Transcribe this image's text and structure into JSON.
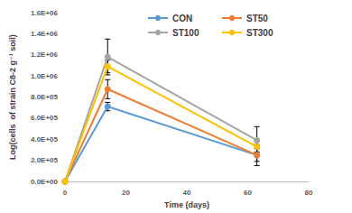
{
  "chart_data": {
    "type": "line",
    "x_label": "Time (days)",
    "y_label": "Log(cells  of strain C8-2 g⁻¹ soil)",
    "x": [
      0,
      14,
      63
    ],
    "series": [
      {
        "name": "CON",
        "color": "#5b9bd5",
        "values": [
          0,
          710000,
          250000
        ],
        "errors": [
          0,
          40000,
          100000
        ]
      },
      {
        "name": "ST50",
        "color": "#ed7d31",
        "values": [
          0,
          875000,
          250000
        ],
        "errors": [
          0,
          90000,
          60000
        ]
      },
      {
        "name": "ST100",
        "color": "#a5a5a5",
        "values": [
          0,
          1180000,
          390000
        ],
        "errors": [
          0,
          170000,
          130000
        ]
      },
      {
        "name": "ST300",
        "color": "#ffc000",
        "values": [
          0,
          1090000,
          330000
        ],
        "errors": [
          0,
          60000,
          50000
        ]
      }
    ],
    "xlim": [
      0,
      80
    ],
    "xticks": [
      0,
      20,
      40,
      60,
      80
    ],
    "ylim": [
      0,
      1600000
    ],
    "yticks": [
      {
        "value": 0,
        "label": "0.0E+00"
      },
      {
        "value": 200000,
        "label": "2.0E+05"
      },
      {
        "value": 400000,
        "label": "4.0E+05"
      },
      {
        "value": 600000,
        "label": "6.0E+05"
      },
      {
        "value": 800000,
        "label": "8.0E+05"
      },
      {
        "value": 1000000,
        "label": "1.0E+06"
      },
      {
        "value": 1200000,
        "label": "1.2E+06"
      },
      {
        "value": 1400000,
        "label": "1.4E+06"
      },
      {
        "value": 1600000,
        "label": "1.6E+06"
      }
    ],
    "grid": false,
    "legend": "top-right",
    "marker": "circle",
    "line_style": "solid"
  }
}
